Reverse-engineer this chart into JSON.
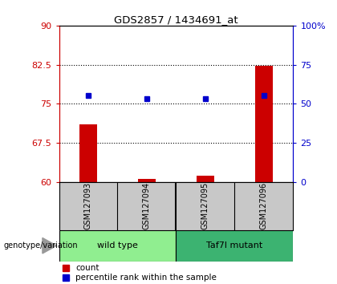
{
  "title": "GDS2857 / 1434691_at",
  "samples": [
    "GSM127093",
    "GSM127094",
    "GSM127095",
    "GSM127096"
  ],
  "counts": [
    71.0,
    60.5,
    61.2,
    82.2
  ],
  "percentiles": [
    55,
    53,
    53,
    55
  ],
  "ylim_left": [
    60,
    90
  ],
  "ylim_right": [
    0,
    100
  ],
  "yticks_left": [
    60,
    67.5,
    75,
    82.5,
    90
  ],
  "yticks_right": [
    0,
    25,
    50,
    75,
    100
  ],
  "ytick_labels_right": [
    "0",
    "25",
    "50",
    "75",
    "100%"
  ],
  "groups": [
    {
      "label": "wild type",
      "sample_indices": [
        0,
        1
      ],
      "color": "#90EE90"
    },
    {
      "label": "Taf7l mutant",
      "sample_indices": [
        2,
        3
      ],
      "color": "#3CB371"
    }
  ],
  "bar_color": "#CC0000",
  "dot_color": "#0000CC",
  "bg_color": "#C8C8C8",
  "label_color_left": "#CC0000",
  "label_color_right": "#0000CC",
  "genotype_label": "genotype/variation",
  "legend_count": "count",
  "legend_percentile": "percentile rank within the sample"
}
